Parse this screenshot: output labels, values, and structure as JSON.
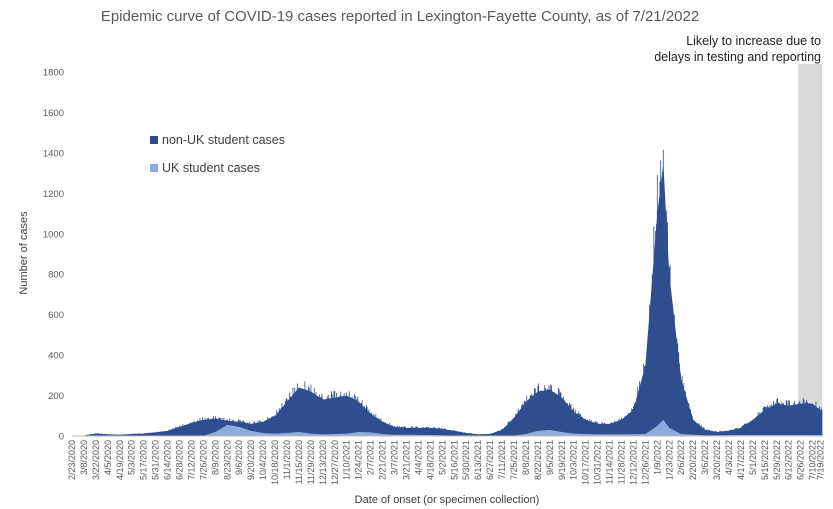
{
  "colors": {
    "non_uk": "#2f4e8f",
    "uk": "#8faadc",
    "shade": "#d9d9d9",
    "axis_text": "#595959"
  },
  "chart_data": {
    "type": "bar",
    "title": "Epidemic curve of COVID-19 cases reported in Lexington-Fayette County, as of 7/21/2022",
    "xlabel": "Date of onset (or specimen collection)",
    "ylabel": "Number of cases",
    "ylim": [
      0,
      1800
    ],
    "yticks": [
      0,
      200,
      400,
      600,
      800,
      1000,
      1200,
      1400,
      1600,
      1800
    ],
    "grid": false,
    "legend_position": "upper-left",
    "annotation": "Likely to increase due to delays in testing and reporting",
    "shaded_period": [
      "6/23/2022",
      "7/21/2022"
    ],
    "x_tick_labels": [
      "2/23/2020",
      "3/8/2020",
      "3/22/2020",
      "4/5/2020",
      "4/19/2020",
      "5/3/2020",
      "5/17/2020",
      "5/31/2020",
      "6/14/2020",
      "6/28/2020",
      "7/12/2020",
      "7/26/2020",
      "8/9/2020",
      "8/23/2020",
      "9/6/2020",
      "9/20/2020",
      "10/4/2020",
      "10/18/2020",
      "11/1/2020",
      "11/15/2020",
      "11/29/2020",
      "12/13/2020",
      "12/27/2020",
      "1/10/2021",
      "1/24/2021",
      "2/7/2021",
      "2/21/2021",
      "3/7/2021",
      "3/21/2021",
      "4/4/2021",
      "4/18/2021",
      "5/2/2021",
      "5/16/2021",
      "5/30/2021",
      "6/13/2021",
      "6/27/2021",
      "7/11/2021",
      "7/25/2021",
      "8/8/2021",
      "8/22/2021",
      "9/5/2021",
      "9/19/2021",
      "10/3/2021",
      "10/17/2021",
      "10/31/2021",
      "11/14/2021",
      "11/28/2021",
      "12/12/2021",
      "12/26/2021",
      "1/9/2022",
      "1/23/2022",
      "2/6/2022",
      "2/20/2022",
      "3/6/2022",
      "3/20/2022",
      "4/3/2022",
      "4/17/2022",
      "5/1/2022",
      "5/15/2022",
      "5/29/2022",
      "6/12/2022",
      "6/26/2022",
      "7/10/2022",
      "7/19/2022"
    ],
    "x_start": "2/23/2020",
    "x_end": "7/21/2022",
    "series": [
      {
        "name": "non-UK student cases",
        "points": [
          [
            "2/23/2020",
            0
          ],
          [
            "3/8/2020",
            2
          ],
          [
            "3/22/2020",
            12
          ],
          [
            "4/5/2020",
            8
          ],
          [
            "4/19/2020",
            6
          ],
          [
            "5/3/2020",
            10
          ],
          [
            "5/17/2020",
            12
          ],
          [
            "5/31/2020",
            18
          ],
          [
            "6/14/2020",
            25
          ],
          [
            "6/28/2020",
            45
          ],
          [
            "7/12/2020",
            65
          ],
          [
            "7/26/2020",
            80
          ],
          [
            "8/9/2020",
            85
          ],
          [
            "8/23/2020",
            75
          ],
          [
            "9/6/2020",
            70
          ],
          [
            "9/20/2020",
            60
          ],
          [
            "10/4/2020",
            70
          ],
          [
            "10/18/2020",
            100
          ],
          [
            "11/1/2020",
            170
          ],
          [
            "11/15/2020",
            240
          ],
          [
            "11/29/2020",
            220
          ],
          [
            "12/13/2020",
            180
          ],
          [
            "12/27/2020",
            190
          ],
          [
            "1/10/2021",
            200
          ],
          [
            "1/24/2021",
            170
          ],
          [
            "2/7/2021",
            110
          ],
          [
            "2/21/2021",
            70
          ],
          [
            "3/7/2021",
            45
          ],
          [
            "3/21/2021",
            40
          ],
          [
            "4/4/2021",
            40
          ],
          [
            "4/18/2021",
            40
          ],
          [
            "5/2/2021",
            35
          ],
          [
            "5/16/2021",
            25
          ],
          [
            "5/30/2021",
            15
          ],
          [
            "6/13/2021",
            8
          ],
          [
            "6/27/2021",
            10
          ],
          [
            "7/11/2021",
            30
          ],
          [
            "7/25/2021",
            90
          ],
          [
            "8/8/2021",
            170
          ],
          [
            "8/22/2021",
            220
          ],
          [
            "9/5/2021",
            230
          ],
          [
            "9/19/2021",
            190
          ],
          [
            "10/3/2021",
            120
          ],
          [
            "10/17/2021",
            80
          ],
          [
            "10/31/2021",
            60
          ],
          [
            "11/14/2021",
            60
          ],
          [
            "11/28/2021",
            80
          ],
          [
            "12/12/2021",
            130
          ],
          [
            "12/26/2021",
            350
          ],
          [
            "1/9/2022",
            1100
          ],
          [
            "1/16/2022",
            1350
          ],
          [
            "1/23/2022",
            800
          ],
          [
            "2/6/2022",
            280
          ],
          [
            "2/20/2022",
            80
          ],
          [
            "3/6/2022",
            30
          ],
          [
            "3/20/2022",
            20
          ],
          [
            "4/3/2022",
            25
          ],
          [
            "4/17/2022",
            40
          ],
          [
            "5/1/2022",
            80
          ],
          [
            "5/15/2022",
            130
          ],
          [
            "5/29/2022",
            160
          ],
          [
            "6/12/2022",
            150
          ],
          [
            "6/26/2022",
            160
          ],
          [
            "7/10/2022",
            160
          ],
          [
            "7/21/2022",
            120
          ]
        ]
      },
      {
        "name": "UK student cases",
        "points": [
          [
            "2/23/2020",
            0
          ],
          [
            "7/26/2020",
            0
          ],
          [
            "8/9/2020",
            20
          ],
          [
            "8/23/2020",
            55
          ],
          [
            "9/6/2020",
            45
          ],
          [
            "9/20/2020",
            25
          ],
          [
            "10/4/2020",
            15
          ],
          [
            "10/18/2020",
            12
          ],
          [
            "11/1/2020",
            15
          ],
          [
            "11/15/2020",
            20
          ],
          [
            "11/29/2020",
            12
          ],
          [
            "12/13/2020",
            8
          ],
          [
            "1/10/2021",
            12
          ],
          [
            "1/24/2021",
            20
          ],
          [
            "2/7/2021",
            18
          ],
          [
            "2/21/2021",
            10
          ],
          [
            "3/7/2021",
            6
          ],
          [
            "4/18/2021",
            5
          ],
          [
            "5/16/2021",
            2
          ],
          [
            "6/13/2021",
            0
          ],
          [
            "7/25/2021",
            2
          ],
          [
            "8/8/2021",
            10
          ],
          [
            "8/22/2021",
            25
          ],
          [
            "9/5/2021",
            30
          ],
          [
            "9/19/2021",
            20
          ],
          [
            "10/3/2021",
            12
          ],
          [
            "10/31/2021",
            8
          ],
          [
            "11/28/2021",
            8
          ],
          [
            "12/26/2021",
            10
          ],
          [
            "1/9/2022",
            50
          ],
          [
            "1/16/2022",
            80
          ],
          [
            "1/23/2022",
            40
          ],
          [
            "2/6/2022",
            10
          ],
          [
            "3/6/2022",
            3
          ],
          [
            "4/17/2022",
            5
          ],
          [
            "5/15/2022",
            5
          ],
          [
            "6/12/2022",
            5
          ],
          [
            "7/21/2022",
            5
          ]
        ]
      }
    ]
  }
}
